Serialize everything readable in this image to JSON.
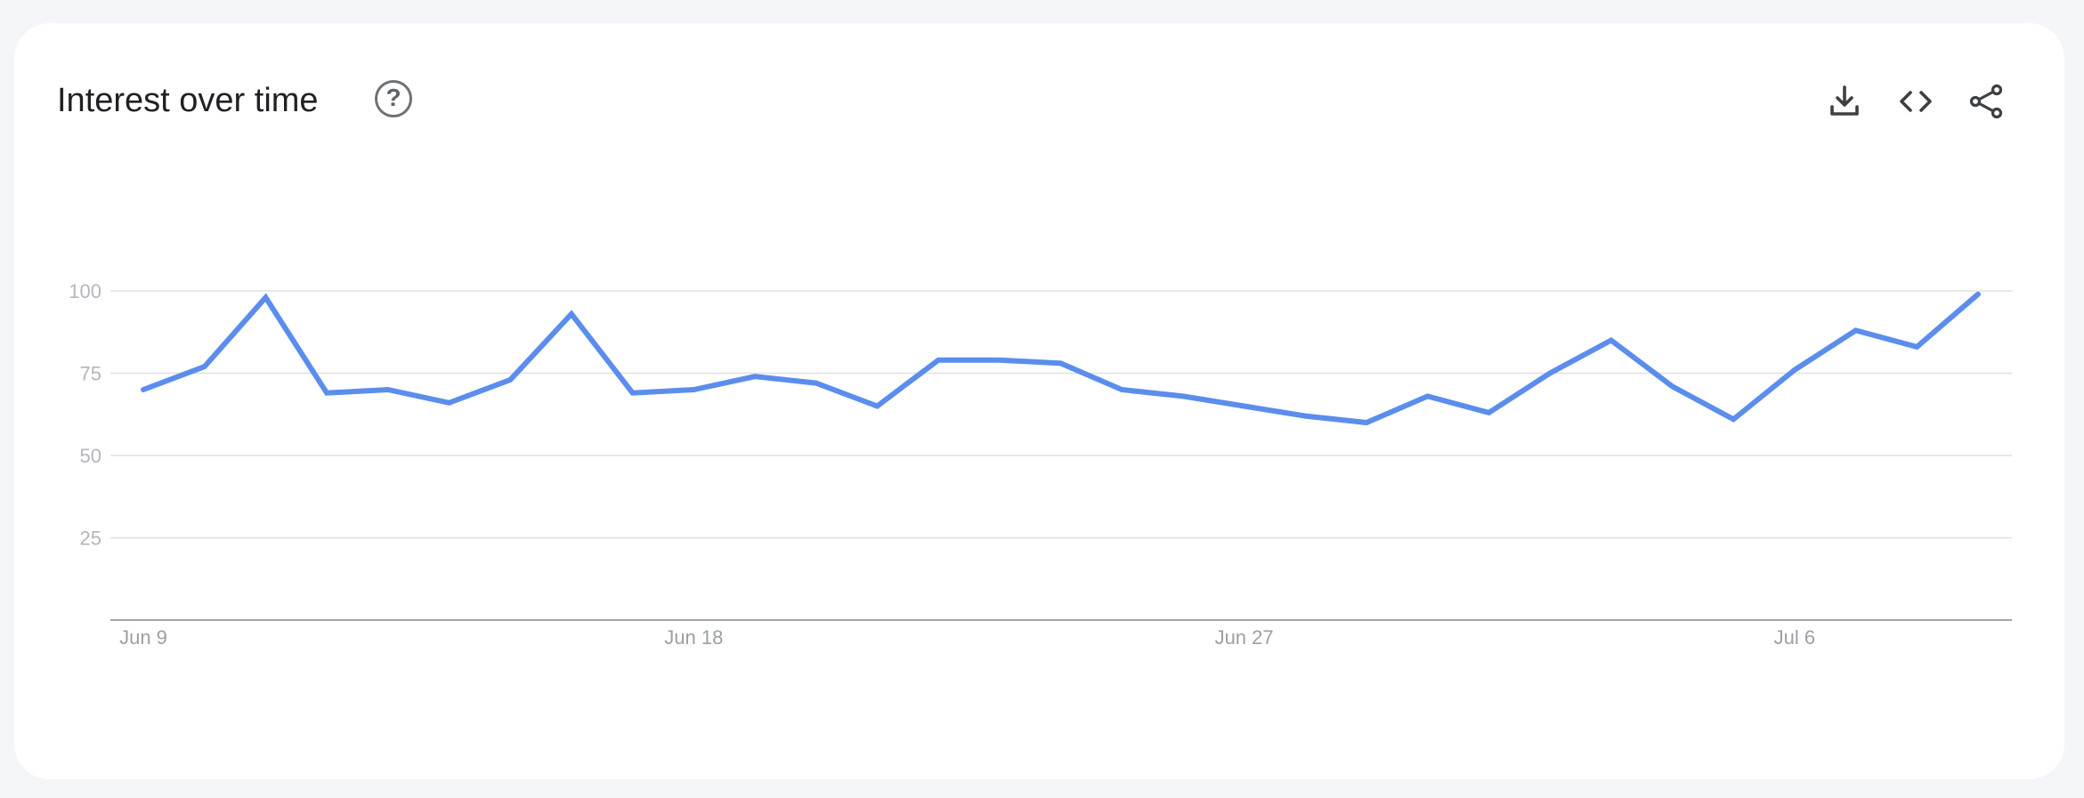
{
  "header": {
    "title": "Interest over time",
    "help_icon": "help-circle-icon",
    "actions": [
      {
        "icon": "download-icon"
      },
      {
        "icon": "embed-code-icon"
      },
      {
        "icon": "share-icon"
      }
    ]
  },
  "colors": {
    "line": "#5b8ded",
    "grid": "#e0e0e0",
    "axis": "#80868b",
    "icon": "#3c4043"
  },
  "chart_data": {
    "type": "line",
    "title": "Interest over time",
    "xlabel": "",
    "ylabel": "",
    "ylim": [
      0,
      100
    ],
    "yticks": [
      25,
      50,
      75,
      100
    ],
    "grid": true,
    "x_tick_labels": [
      {
        "label": "Jun 9",
        "index": 0
      },
      {
        "label": "Jun 18",
        "index": 9
      },
      {
        "label": "Jun 27",
        "index": 18
      },
      {
        "label": "Jul 6",
        "index": 27
      }
    ],
    "x": [
      "Jun 9",
      "Jun 10",
      "Jun 11",
      "Jun 12",
      "Jun 13",
      "Jun 14",
      "Jun 15",
      "Jun 16",
      "Jun 17",
      "Jun 18",
      "Jun 19",
      "Jun 20",
      "Jun 21",
      "Jun 22",
      "Jun 23",
      "Jun 24",
      "Jun 25",
      "Jun 26",
      "Jun 27",
      "Jun 28",
      "Jun 29",
      "Jun 30",
      "Jul 1",
      "Jul 2",
      "Jul 3",
      "Jul 4",
      "Jul 5",
      "Jul 6",
      "Jul 7",
      "Jul 8",
      "Jul 9"
    ],
    "series": [
      {
        "values": [
          70,
          77,
          98,
          69,
          70,
          66,
          73,
          93,
          69,
          70,
          74,
          72,
          65,
          79,
          79,
          78,
          70,
          68,
          65,
          62,
          60,
          68,
          63,
          75,
          85,
          71,
          61,
          76,
          88,
          83,
          99
        ]
      }
    ]
  }
}
